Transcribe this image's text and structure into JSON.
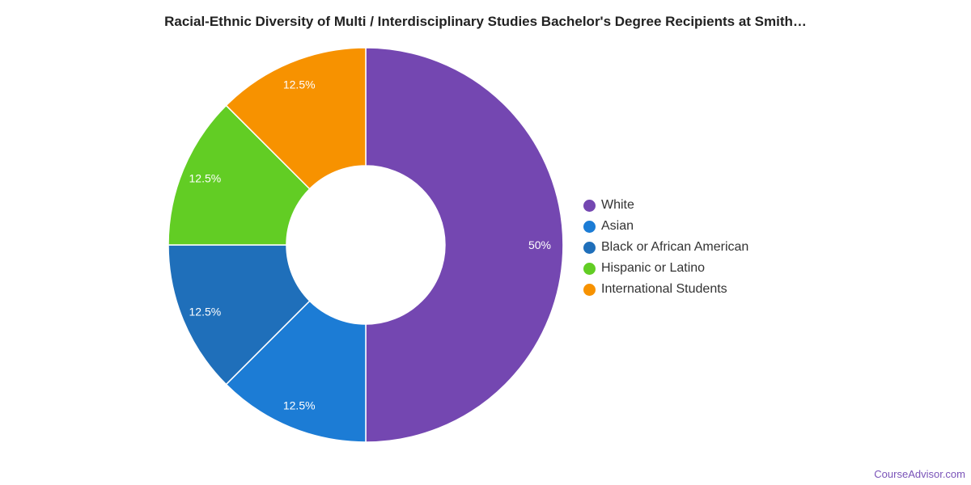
{
  "chart_data": {
    "type": "pie",
    "title": "Racial-Ethnic Diversity of Multi / Interdisciplinary Studies Bachelor's Degree Recipients at Smith…",
    "donut": true,
    "legend_position": "right",
    "slices": [
      {
        "name": "White",
        "value": 50,
        "label": "50%",
        "color": "#7447b1"
      },
      {
        "name": "Asian",
        "value": 12.5,
        "label": "12.5%",
        "color": "#1c7cd5"
      },
      {
        "name": "Black or African American",
        "value": 12.5,
        "label": "12.5%",
        "color": "#1f6fba"
      },
      {
        "name": "Hispanic or Latino",
        "value": 12.5,
        "label": "12.5%",
        "color": "#62cd24"
      },
      {
        "name": "International Students",
        "value": 12.5,
        "label": "12.5%",
        "color": "#f79200"
      }
    ]
  },
  "watermark": "CourseAdvisor.com"
}
